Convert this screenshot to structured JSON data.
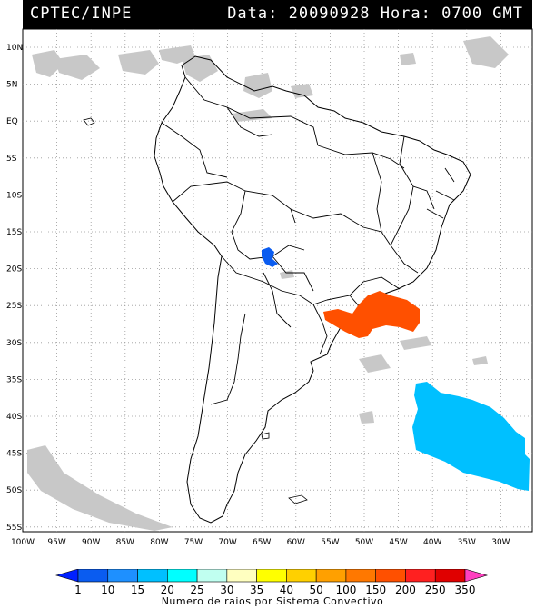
{
  "header": {
    "left_text": "CPTEC/INPE",
    "right_text": "Data: 20090928 Hora: 0700 GMT"
  },
  "map": {
    "lat_labels": [
      "10N",
      "5N",
      "EQ",
      "5S",
      "10S",
      "15S",
      "20S",
      "25S",
      "30S",
      "35S",
      "40S",
      "45S",
      "50S",
      "55S"
    ],
    "lon_labels": [
      "100W",
      "95W",
      "90W",
      "85W",
      "80W",
      "75W",
      "70W",
      "65W",
      "60W",
      "55W",
      "50W",
      "45W",
      "40W",
      "35W",
      "30W"
    ],
    "colors": {
      "coast": "#000000",
      "cloud": "#c8c8c8",
      "grid": "#999999"
    }
  },
  "colorbar": {
    "tick_labels": [
      "1",
      "10",
      "15",
      "20",
      "25",
      "30",
      "35",
      "40",
      "50",
      "100",
      "150",
      "200",
      "250",
      "350"
    ],
    "colors": [
      "#0020ff",
      "#0a5cf0",
      "#1e90ff",
      "#00c0ff",
      "#00ffff",
      "#c0fff0",
      "#ffffc0",
      "#ffff00",
      "#ffd000",
      "#ffa000",
      "#ff7800",
      "#ff5000",
      "#ff2020",
      "#e00000",
      "#ff40c0"
    ],
    "title": "Numero de raios por Sistema Convectivo"
  },
  "systems": [
    {
      "name": "cluster-bolivia",
      "color": "#0a5cf0"
    },
    {
      "name": "cluster-southern-brazil",
      "color": "#ff5000"
    },
    {
      "name": "cluster-south-atlantic",
      "color": "#00c0ff"
    }
  ]
}
